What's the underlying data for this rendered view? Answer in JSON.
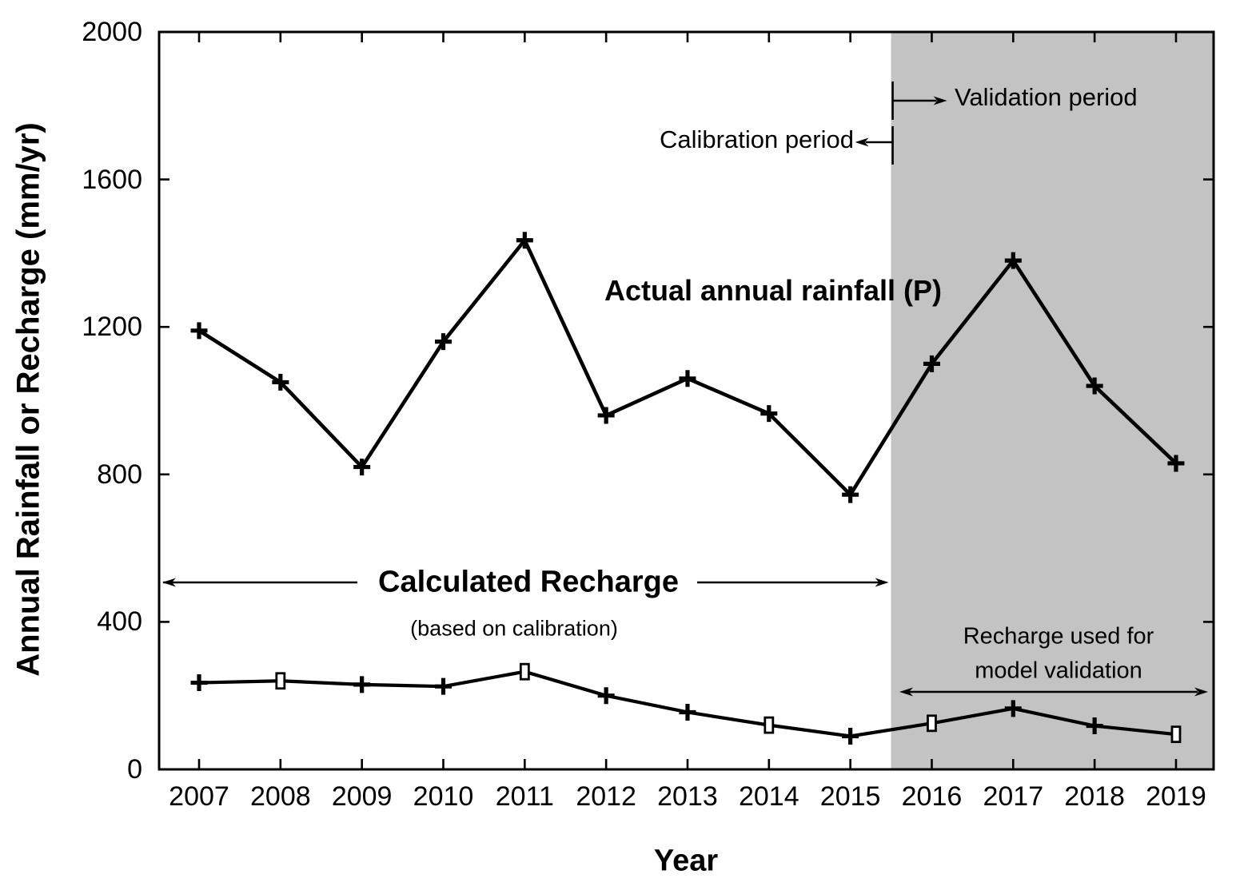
{
  "chart_data": {
    "type": "line",
    "title": "",
    "xlabel": "Year",
    "ylabel": "Annual Rainfall or Recharge (mm/yr)",
    "x": [
      2007,
      2008,
      2009,
      2010,
      2011,
      2012,
      2013,
      2014,
      2015,
      2016,
      2017,
      2018,
      2019
    ],
    "ylim": [
      0,
      2000
    ],
    "yticks": [
      0,
      400,
      800,
      1200,
      1600,
      2000
    ],
    "grid": false,
    "legend_position": "none",
    "series": [
      {
        "name": "Actual annual rainfall (P)",
        "marker": "plus",
        "color": "#000000",
        "values": [
          1190,
          1050,
          820,
          1160,
          1435,
          960,
          1060,
          965,
          745,
          1100,
          1380,
          1040,
          830
        ]
      },
      {
        "name": "Calculated Recharge",
        "marker": "plus-with-open-squares",
        "color": "#000000",
        "values": [
          235,
          240,
          230,
          225,
          265,
          200,
          155,
          120,
          90,
          125,
          165,
          118,
          95
        ],
        "open_marker_years": [
          2008,
          2011,
          2014,
          2016,
          2019
        ]
      }
    ],
    "shaded_region": {
      "from_year": 2015.5,
      "to_year": 2019.45,
      "color": "#c3c3c3",
      "meaning": "Validation period"
    }
  },
  "labels": {
    "y_axis": "Annual Rainfall or Recharge (mm/yr)",
    "x_axis": "Year",
    "rainfall": "Actual annual rainfall (P)",
    "calibration_period": "Calibration period",
    "validation_period": "Validation period",
    "calc_recharge_title": "Calculated Recharge",
    "calc_recharge_sub": "(based on calibration)",
    "recharge_validation_line1": "Recharge used for",
    "recharge_validation_line2": "model validation"
  },
  "colors": {
    "line": "#000000",
    "shade": "#c3c3c3",
    "text": "#000000",
    "background": "#ffffff"
  }
}
